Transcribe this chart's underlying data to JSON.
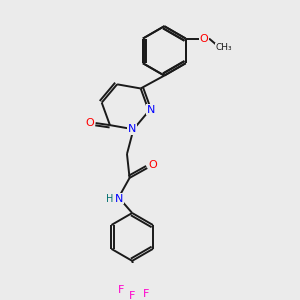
{
  "background_color": "#ebebeb",
  "C": "#1a1a1a",
  "N": "#0000ff",
  "O": "#ff0000",
  "F": "#ff00cc",
  "H": "#007070",
  "lw": 1.4,
  "doff": 0.09,
  "fsize": 8.0
}
